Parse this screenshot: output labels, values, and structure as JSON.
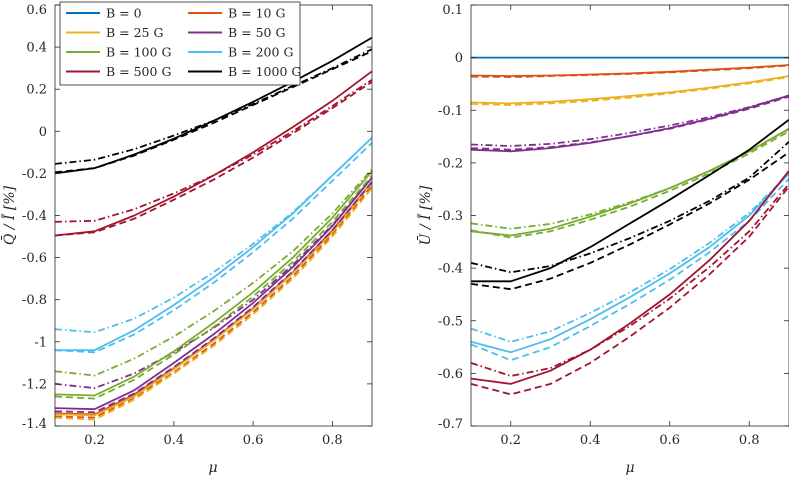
{
  "colors": {
    "B0": "#0072BD",
    "B10": "#D95319",
    "B25": "#EDB120",
    "B50": "#7E2F8E",
    "B100": "#77AC30",
    "B200": "#4DBEEE",
    "B500": "#A2142F",
    "B1000": "#000000"
  },
  "chart_data": [
    {
      "type": "line",
      "panel": "left",
      "title": "",
      "xlabel": "μ",
      "ylabel": "Q̄ / Ī [%]",
      "xlim": [
        0.1,
        0.9
      ],
      "ylim": [
        -1.4,
        0.6
      ],
      "xticks": [
        0.2,
        0.4,
        0.6,
        0.8
      ],
      "xtick_labels": [
        "0.2",
        "0.4",
        "0.6",
        "0.8"
      ],
      "yticks": [
        -1.4,
        -1.2,
        -1.0,
        -0.8,
        -0.6,
        -0.4,
        -0.2,
        0,
        0.2,
        0.4,
        0.6
      ],
      "ytick_labels": [
        "-1.4",
        "-1.2",
        "-1",
        "-0.8",
        "-0.6",
        "-0.4",
        "-0.2",
        "0",
        "0.2",
        "0.4",
        "0.6"
      ],
      "grid": false,
      "legend": {
        "placement": "top-left",
        "columns": 2,
        "entries": [
          {
            "label": "B = 0",
            "color_key": "B0"
          },
          {
            "label": "B = 10 G",
            "color_key": "B10"
          },
          {
            "label": "B = 25 G",
            "color_key": "B25"
          },
          {
            "label": "B = 50 G",
            "color_key": "B50"
          },
          {
            "label": "B = 100 G",
            "color_key": "B100"
          },
          {
            "label": "B = 200 G",
            "color_key": "B200"
          },
          {
            "label": "B = 500 G",
            "color_key": "B500"
          },
          {
            "label": "B = 1000 G",
            "color_key": "B1000"
          }
        ]
      },
      "x": [
        0.1,
        0.2,
        0.3,
        0.4,
        0.5,
        0.6,
        0.7,
        0.8,
        0.9
      ],
      "series": [
        {
          "name": "B = 10 G solid",
          "color_key": "B10",
          "style": "solid",
          "values": [
            -1.34,
            -1.345,
            -1.25,
            -1.125,
            -0.99,
            -0.84,
            -0.67,
            -0.47,
            -0.24
          ]
        },
        {
          "name": "B = 10 G dashed",
          "color_key": "B10",
          "style": "dashed",
          "values": [
            -1.355,
            -1.36,
            -1.265,
            -1.145,
            -1.01,
            -0.86,
            -0.69,
            -0.49,
            -0.26
          ]
        },
        {
          "name": "B = 25 G solid",
          "color_key": "B25",
          "style": "solid",
          "values": [
            -1.345,
            -1.35,
            -1.26,
            -1.13,
            -0.995,
            -0.845,
            -0.675,
            -0.48,
            -0.245
          ]
        },
        {
          "name": "B = 25 G dashed",
          "color_key": "B25",
          "style": "dashed",
          "values": [
            -1.36,
            -1.37,
            -1.275,
            -1.15,
            -1.02,
            -0.87,
            -0.7,
            -0.5,
            -0.27
          ]
        },
        {
          "name": "B = 50 G solid",
          "color_key": "B50",
          "style": "solid",
          "values": [
            -1.315,
            -1.32,
            -1.23,
            -1.1,
            -0.965,
            -0.815,
            -0.645,
            -0.45,
            -0.22
          ]
        },
        {
          "name": "B = 50 G dashed",
          "color_key": "B50",
          "style": "dashed",
          "values": [
            -1.33,
            -1.335,
            -1.245,
            -1.12,
            -0.985,
            -0.835,
            -0.665,
            -0.47,
            -0.24
          ]
        },
        {
          "name": "B = 50 G dash-dot",
          "color_key": "B50",
          "style": "dashdot",
          "values": [
            -1.2,
            -1.22,
            -1.15,
            -1.05,
            -0.935,
            -0.8,
            -0.635,
            -0.445,
            -0.22
          ]
        },
        {
          "name": "B = 100 G solid",
          "color_key": "B100",
          "style": "solid",
          "values": [
            -1.25,
            -1.255,
            -1.165,
            -1.045,
            -0.91,
            -0.765,
            -0.6,
            -0.41,
            -0.19
          ]
        },
        {
          "name": "B = 100 G dashed",
          "color_key": "B100",
          "style": "dashed",
          "values": [
            -1.26,
            -1.27,
            -1.18,
            -1.06,
            -0.93,
            -0.785,
            -0.62,
            -0.43,
            -0.21
          ]
        },
        {
          "name": "B = 100 G dash-dot",
          "color_key": "B100",
          "style": "dashdot",
          "values": [
            -1.14,
            -1.16,
            -1.08,
            -0.975,
            -0.855,
            -0.72,
            -0.57,
            -0.39,
            -0.18
          ]
        },
        {
          "name": "B = 200 G solid",
          "color_key": "B200",
          "style": "solid",
          "values": [
            -1.04,
            -1.04,
            -0.945,
            -0.825,
            -0.695,
            -0.55,
            -0.39,
            -0.21,
            -0.03
          ]
        },
        {
          "name": "B = 200 G dashed",
          "color_key": "B200",
          "style": "dashed",
          "values": [
            -1.04,
            -1.05,
            -0.965,
            -0.85,
            -0.72,
            -0.575,
            -0.415,
            -0.235,
            -0.055
          ]
        },
        {
          "name": "B = 200 G dash-dot",
          "color_key": "B200",
          "style": "dashdot",
          "values": [
            -0.94,
            -0.955,
            -0.89,
            -0.79,
            -0.67,
            -0.535,
            -0.385,
            -0.21,
            -0.03
          ]
        },
        {
          "name": "B = 500 G solid",
          "color_key": "B500",
          "style": "solid",
          "values": [
            -0.495,
            -0.475,
            -0.4,
            -0.31,
            -0.21,
            -0.1,
            0.02,
            0.145,
            0.285
          ]
        },
        {
          "name": "B = 500 G dashed",
          "color_key": "B500",
          "style": "dashed",
          "values": [
            -0.495,
            -0.48,
            -0.415,
            -0.325,
            -0.23,
            -0.125,
            -0.01,
            0.11,
            0.235
          ]
        },
        {
          "name": "B = 500 G dash-dot",
          "color_key": "B500",
          "style": "dashdot",
          "values": [
            -0.43,
            -0.425,
            -0.37,
            -0.295,
            -0.21,
            -0.11,
            0.0,
            0.12,
            0.245
          ]
        },
        {
          "name": "B = 1000 G solid",
          "color_key": "B1000",
          "style": "solid",
          "values": [
            -0.2,
            -0.175,
            -0.11,
            -0.035,
            0.05,
            0.14,
            0.235,
            0.335,
            0.445
          ]
        },
        {
          "name": "B = 1000 G dashed",
          "color_key": "B1000",
          "style": "dashed",
          "values": [
            -0.195,
            -0.175,
            -0.115,
            -0.04,
            0.04,
            0.125,
            0.21,
            0.295,
            0.38
          ]
        },
        {
          "name": "B = 1000 G dash-dot",
          "color_key": "B1000",
          "style": "dashdot",
          "values": [
            -0.155,
            -0.135,
            -0.085,
            -0.02,
            0.05,
            0.13,
            0.215,
            0.3,
            0.39
          ]
        }
      ]
    },
    {
      "type": "line",
      "panel": "right",
      "title": "",
      "xlabel": "μ",
      "ylabel": "Ū / Ī [%]",
      "xlim": [
        0.1,
        0.9
      ],
      "ylim": [
        -0.7,
        0.1
      ],
      "xticks": [
        0.2,
        0.4,
        0.6,
        0.8
      ],
      "xtick_labels": [
        "0.2",
        "0.4",
        "0.6",
        "0.8"
      ],
      "yticks": [
        -0.7,
        -0.6,
        -0.5,
        -0.4,
        -0.3,
        -0.2,
        -0.1,
        0,
        0.1
      ],
      "ytick_labels": [
        "-0.7",
        "-0.6",
        "-0.5",
        "-0.4",
        "-0.3",
        "-0.2",
        "-0.1",
        "0",
        "0.1"
      ],
      "grid": false,
      "x": [
        0.1,
        0.2,
        0.3,
        0.4,
        0.5,
        0.6,
        0.7,
        0.8,
        0.9
      ],
      "series": [
        {
          "name": "B = 0",
          "color_key": "B0",
          "style": "solid",
          "values": [
            0.0,
            0.0,
            0.0,
            0.0,
            0.0,
            0.0,
            0.0,
            0.0,
            0.0
          ]
        },
        {
          "name": "B = 10 G solid",
          "color_key": "B10",
          "style": "solid",
          "values": [
            -0.034,
            -0.035,
            -0.034,
            -0.032,
            -0.03,
            -0.027,
            -0.023,
            -0.019,
            -0.014
          ]
        },
        {
          "name": "B = 10 G dashed",
          "color_key": "B10",
          "style": "dashed",
          "values": [
            -0.036,
            -0.037,
            -0.035,
            -0.033,
            -0.031,
            -0.028,
            -0.024,
            -0.02,
            -0.015
          ]
        },
        {
          "name": "B = 25 G solid",
          "color_key": "B25",
          "style": "solid",
          "values": [
            -0.085,
            -0.087,
            -0.084,
            -0.079,
            -0.073,
            -0.066,
            -0.057,
            -0.047,
            -0.035
          ]
        },
        {
          "name": "B = 25 G dashed",
          "color_key": "B25",
          "style": "dashed",
          "values": [
            -0.088,
            -0.09,
            -0.087,
            -0.082,
            -0.076,
            -0.068,
            -0.059,
            -0.049,
            -0.037
          ]
        },
        {
          "name": "B = 50 G solid",
          "color_key": "B50",
          "style": "solid",
          "values": [
            -0.175,
            -0.178,
            -0.172,
            -0.162,
            -0.149,
            -0.134,
            -0.116,
            -0.095,
            -0.072
          ]
        },
        {
          "name": "B = 50 G dashed",
          "color_key": "B50",
          "style": "dashed",
          "values": [
            -0.172,
            -0.175,
            -0.17,
            -0.161,
            -0.149,
            -0.135,
            -0.117,
            -0.097,
            -0.074
          ]
        },
        {
          "name": "B = 50 G dash-dot",
          "color_key": "B50",
          "style": "dashdot",
          "values": [
            -0.165,
            -0.168,
            -0.164,
            -0.155,
            -0.143,
            -0.129,
            -0.113,
            -0.094,
            -0.072
          ]
        },
        {
          "name": "B = 100 G solid",
          "color_key": "B100",
          "style": "solid",
          "values": [
            -0.33,
            -0.338,
            -0.325,
            -0.302,
            -0.277,
            -0.248,
            -0.215,
            -0.178,
            -0.135
          ]
        },
        {
          "name": "B = 100 G dashed",
          "color_key": "B100",
          "style": "dashed",
          "values": [
            -0.328,
            -0.342,
            -0.33,
            -0.308,
            -0.283,
            -0.253,
            -0.22,
            -0.182,
            -0.14
          ]
        },
        {
          "name": "B = 100 G dash-dot",
          "color_key": "B100",
          "style": "dashdot",
          "values": [
            -0.315,
            -0.325,
            -0.316,
            -0.298,
            -0.275,
            -0.248,
            -0.216,
            -0.178,
            -0.136
          ]
        },
        {
          "name": "B = 200 G solid",
          "color_key": "B200",
          "style": "solid",
          "values": [
            -0.54,
            -0.56,
            -0.535,
            -0.497,
            -0.455,
            -0.41,
            -0.36,
            -0.3,
            -0.22
          ]
        },
        {
          "name": "B = 200 G dashed",
          "color_key": "B200",
          "style": "dashed",
          "values": [
            -0.545,
            -0.575,
            -0.55,
            -0.51,
            -0.468,
            -0.422,
            -0.37,
            -0.31,
            -0.23
          ]
        },
        {
          "name": "B = 200 G dash-dot",
          "color_key": "B200",
          "style": "dashdot",
          "values": [
            -0.515,
            -0.54,
            -0.52,
            -0.485,
            -0.446,
            -0.402,
            -0.352,
            -0.295,
            -0.22
          ]
        },
        {
          "name": "B = 500 G solid",
          "color_key": "B500",
          "style": "solid",
          "values": [
            -0.61,
            -0.62,
            -0.595,
            -0.555,
            -0.505,
            -0.45,
            -0.385,
            -0.31,
            -0.215
          ]
        },
        {
          "name": "B = 500 G dashed",
          "color_key": "B500",
          "style": "dashed",
          "values": [
            -0.62,
            -0.64,
            -0.62,
            -0.58,
            -0.53,
            -0.475,
            -0.412,
            -0.34,
            -0.245
          ]
        },
        {
          "name": "B = 500 G dash-dot",
          "color_key": "B500",
          "style": "dashdot",
          "values": [
            -0.58,
            -0.605,
            -0.59,
            -0.555,
            -0.51,
            -0.458,
            -0.398,
            -0.33,
            -0.24
          ]
        },
        {
          "name": "B = 1000 G solid",
          "color_key": "B1000",
          "style": "solid",
          "values": [
            -0.425,
            -0.425,
            -0.4,
            -0.36,
            -0.315,
            -0.27,
            -0.223,
            -0.175,
            -0.118
          ]
        },
        {
          "name": "B = 1000 G dashed",
          "color_key": "B1000",
          "style": "dashed",
          "values": [
            -0.43,
            -0.44,
            -0.42,
            -0.39,
            -0.355,
            -0.317,
            -0.277,
            -0.232,
            -0.18
          ]
        },
        {
          "name": "B = 1000 G dash-dot",
          "color_key": "B1000",
          "style": "dashdot",
          "values": [
            -0.39,
            -0.408,
            -0.396,
            -0.372,
            -0.343,
            -0.31,
            -0.272,
            -0.228,
            -0.16
          ]
        }
      ]
    }
  ]
}
